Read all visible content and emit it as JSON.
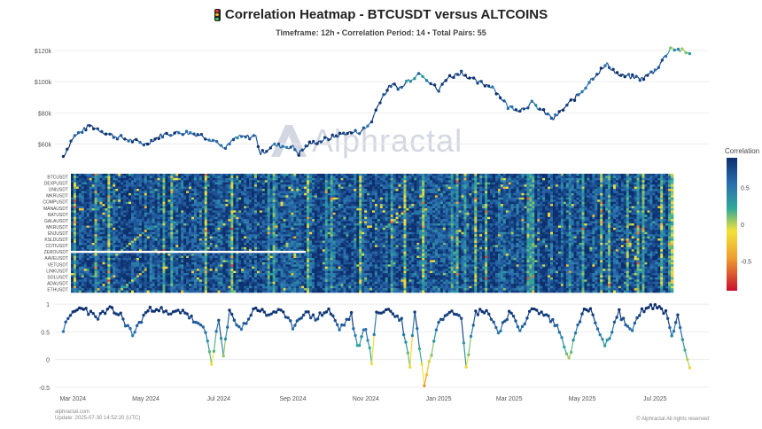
{
  "title": "Correlation Heatmap - BTCUSDT versus ALTCOINS",
  "title_icon": "traffic-light-icon",
  "subtitle": "Timeframe: 12h • Correlation Period: 14 • Total Pairs: 55",
  "watermark": "Alphractal",
  "footer": {
    "site": "alphractal.com",
    "update": "Update: 2025-07-30 14:52:20 (UTC)",
    "copyright": "© Alphractal All rights reserved"
  },
  "colors": {
    "line": "#0d3b66",
    "grid": "#e8e8e8",
    "text": "#555555"
  },
  "chart_data": [
    {
      "type": "line",
      "name": "price",
      "colored_by": "correlation",
      "x_tick_labels": [
        "Mar 2024",
        "May 2024",
        "Jul 2024",
        "Sep 2024",
        "Nov 2024",
        "Jan 2025",
        "Mar 2025",
        "May 2025",
        "Jul 2025"
      ],
      "y_tick_labels": [
        "$60k",
        "$80k",
        "$100k",
        "$120k"
      ],
      "y_ticks": [
        60000,
        80000,
        100000,
        120000
      ],
      "ylim": [
        50000,
        124000
      ],
      "x": [
        "2024-02-22",
        "2024-03-01",
        "2024-03-15",
        "2024-04-01",
        "2024-04-15",
        "2024-05-01",
        "2024-05-15",
        "2024-06-01",
        "2024-06-15",
        "2024-07-01",
        "2024-07-05",
        "2024-07-15",
        "2024-08-01",
        "2024-08-05",
        "2024-08-15",
        "2024-09-01",
        "2024-09-06",
        "2024-09-15",
        "2024-10-01",
        "2024-10-15",
        "2024-10-25",
        "2024-11-01",
        "2024-11-06",
        "2024-11-13",
        "2024-11-22",
        "2024-12-01",
        "2024-12-05",
        "2024-12-17",
        "2025-01-01",
        "2025-01-07",
        "2025-01-20",
        "2025-02-01",
        "2025-02-15",
        "2025-02-28",
        "2025-03-10",
        "2025-03-20",
        "2025-04-07",
        "2025-04-20",
        "2025-05-01",
        "2025-05-10",
        "2025-05-22",
        "2025-06-01",
        "2025-06-20",
        "2025-07-01",
        "2025-07-10",
        "2025-07-14",
        "2025-07-30"
      ],
      "y": [
        52000,
        64000,
        72000,
        66000,
        63000,
        60000,
        66000,
        67500,
        66000,
        61000,
        56000,
        64000,
        65000,
        53500,
        59000,
        58000,
        54000,
        60000,
        63500,
        67000,
        67500,
        70000,
        75000,
        88000,
        98000,
        96000,
        100000,
        106000,
        94000,
        102000,
        106000,
        100000,
        97000,
        84000,
        82000,
        86000,
        76000,
        86000,
        94000,
        103000,
        111000,
        104000,
        102000,
        107000,
        117000,
        122000,
        118000
      ],
      "correlation": [
        0.9,
        0.8,
        0.85,
        0.8,
        0.7,
        0.8,
        0.85,
        0.75,
        0.7,
        0.6,
        0.4,
        0.55,
        0.8,
        0.85,
        0.6,
        0.7,
        0.85,
        0.8,
        0.75,
        0.8,
        0.7,
        0.6,
        0.8,
        0.85,
        0.9,
        0.7,
        0.5,
        0.4,
        0.85,
        0.9,
        0.85,
        0.8,
        0.7,
        0.75,
        0.8,
        0.6,
        0.8,
        0.9,
        0.6,
        0.8,
        0.7,
        0.8,
        0.85,
        0.8,
        0.7,
        0.2,
        0.3
      ]
    },
    {
      "type": "heatmap",
      "name": "altcoin-correlation",
      "y_categories": [
        "BTCUSDT",
        "DEXPUSDT",
        "UNIUSDT",
        "MKRUSDT",
        "COMPUSDT",
        "MANAUSDT",
        "BATUSDT",
        "GALAUSDT",
        "MKRUSDT",
        "ENJUSDT",
        "KSLDUSDT",
        "COTIUSDT",
        "ZEROUSDT",
        "AAVEUSDT",
        "VETUSDT",
        "LINKUSDT",
        "SOLUSDT",
        "ADAUSDT",
        "ETHUSDT"
      ],
      "columns": 230,
      "rows": 55,
      "colorscale": {
        "title": "Correlation",
        "ticks": [
          0.5,
          0,
          -0.5
        ],
        "range": [
          -0.9,
          0.9
        ],
        "stops": [
          "#c8102e",
          "#f0a030",
          "#f2e23a",
          "#30a898",
          "#2a6fb0",
          "#0d2f6e"
        ]
      },
      "gap_row_label": "ZEROUSDT"
    },
    {
      "type": "line",
      "name": "average-correlation",
      "y_tick_labels": [
        "1",
        "0.5",
        "0",
        "-0.5"
      ],
      "y_ticks": [
        1,
        0.5,
        0,
        -0.5
      ],
      "ylim": [
        -0.55,
        1.05
      ],
      "x": [
        "2024-02-22",
        "2024-03-01",
        "2024-03-10",
        "2024-03-20",
        "2024-04-01",
        "2024-04-10",
        "2024-04-20",
        "2024-05-01",
        "2024-05-10",
        "2024-05-20",
        "2024-06-01",
        "2024-06-10",
        "2024-06-20",
        "2024-06-25",
        "2024-07-01",
        "2024-07-05",
        "2024-07-10",
        "2024-07-20",
        "2024-08-01",
        "2024-08-10",
        "2024-08-20",
        "2024-09-01",
        "2024-09-10",
        "2024-09-20",
        "2024-10-01",
        "2024-10-10",
        "2024-10-20",
        "2024-10-25",
        "2024-11-01",
        "2024-11-06",
        "2024-11-10",
        "2024-11-20",
        "2024-12-01",
        "2024-12-08",
        "2024-12-12",
        "2024-12-20",
        "2025-01-01",
        "2025-01-10",
        "2025-01-20",
        "2025-01-24",
        "2025-02-01",
        "2025-02-10",
        "2025-02-20",
        "2025-03-01",
        "2025-03-10",
        "2025-03-20",
        "2025-04-01",
        "2025-04-10",
        "2025-04-20",
        "2025-05-01",
        "2025-05-08",
        "2025-05-20",
        "2025-06-01",
        "2025-06-10",
        "2025-06-20",
        "2025-07-01",
        "2025-07-10",
        "2025-07-15",
        "2025-07-20",
        "2025-07-30"
      ],
      "y": [
        0.55,
        0.85,
        0.95,
        0.75,
        0.9,
        0.8,
        0.45,
        0.85,
        0.95,
        0.8,
        0.9,
        0.7,
        0.5,
        -0.05,
        0.7,
        0.05,
        0.85,
        0.55,
        0.95,
        0.8,
        0.9,
        0.6,
        0.85,
        0.75,
        0.9,
        0.55,
        0.8,
        0.2,
        0.6,
        -0.05,
        0.85,
        0.9,
        0.7,
        -0.1,
        0.9,
        -0.45,
        0.7,
        0.9,
        0.8,
        -0.1,
        0.85,
        0.9,
        0.5,
        0.85,
        0.55,
        0.9,
        0.8,
        0.6,
        0.05,
        0.85,
        0.9,
        0.2,
        0.85,
        0.5,
        0.9,
        0.95,
        0.85,
        0.45,
        0.75,
        -0.15
      ]
    }
  ]
}
